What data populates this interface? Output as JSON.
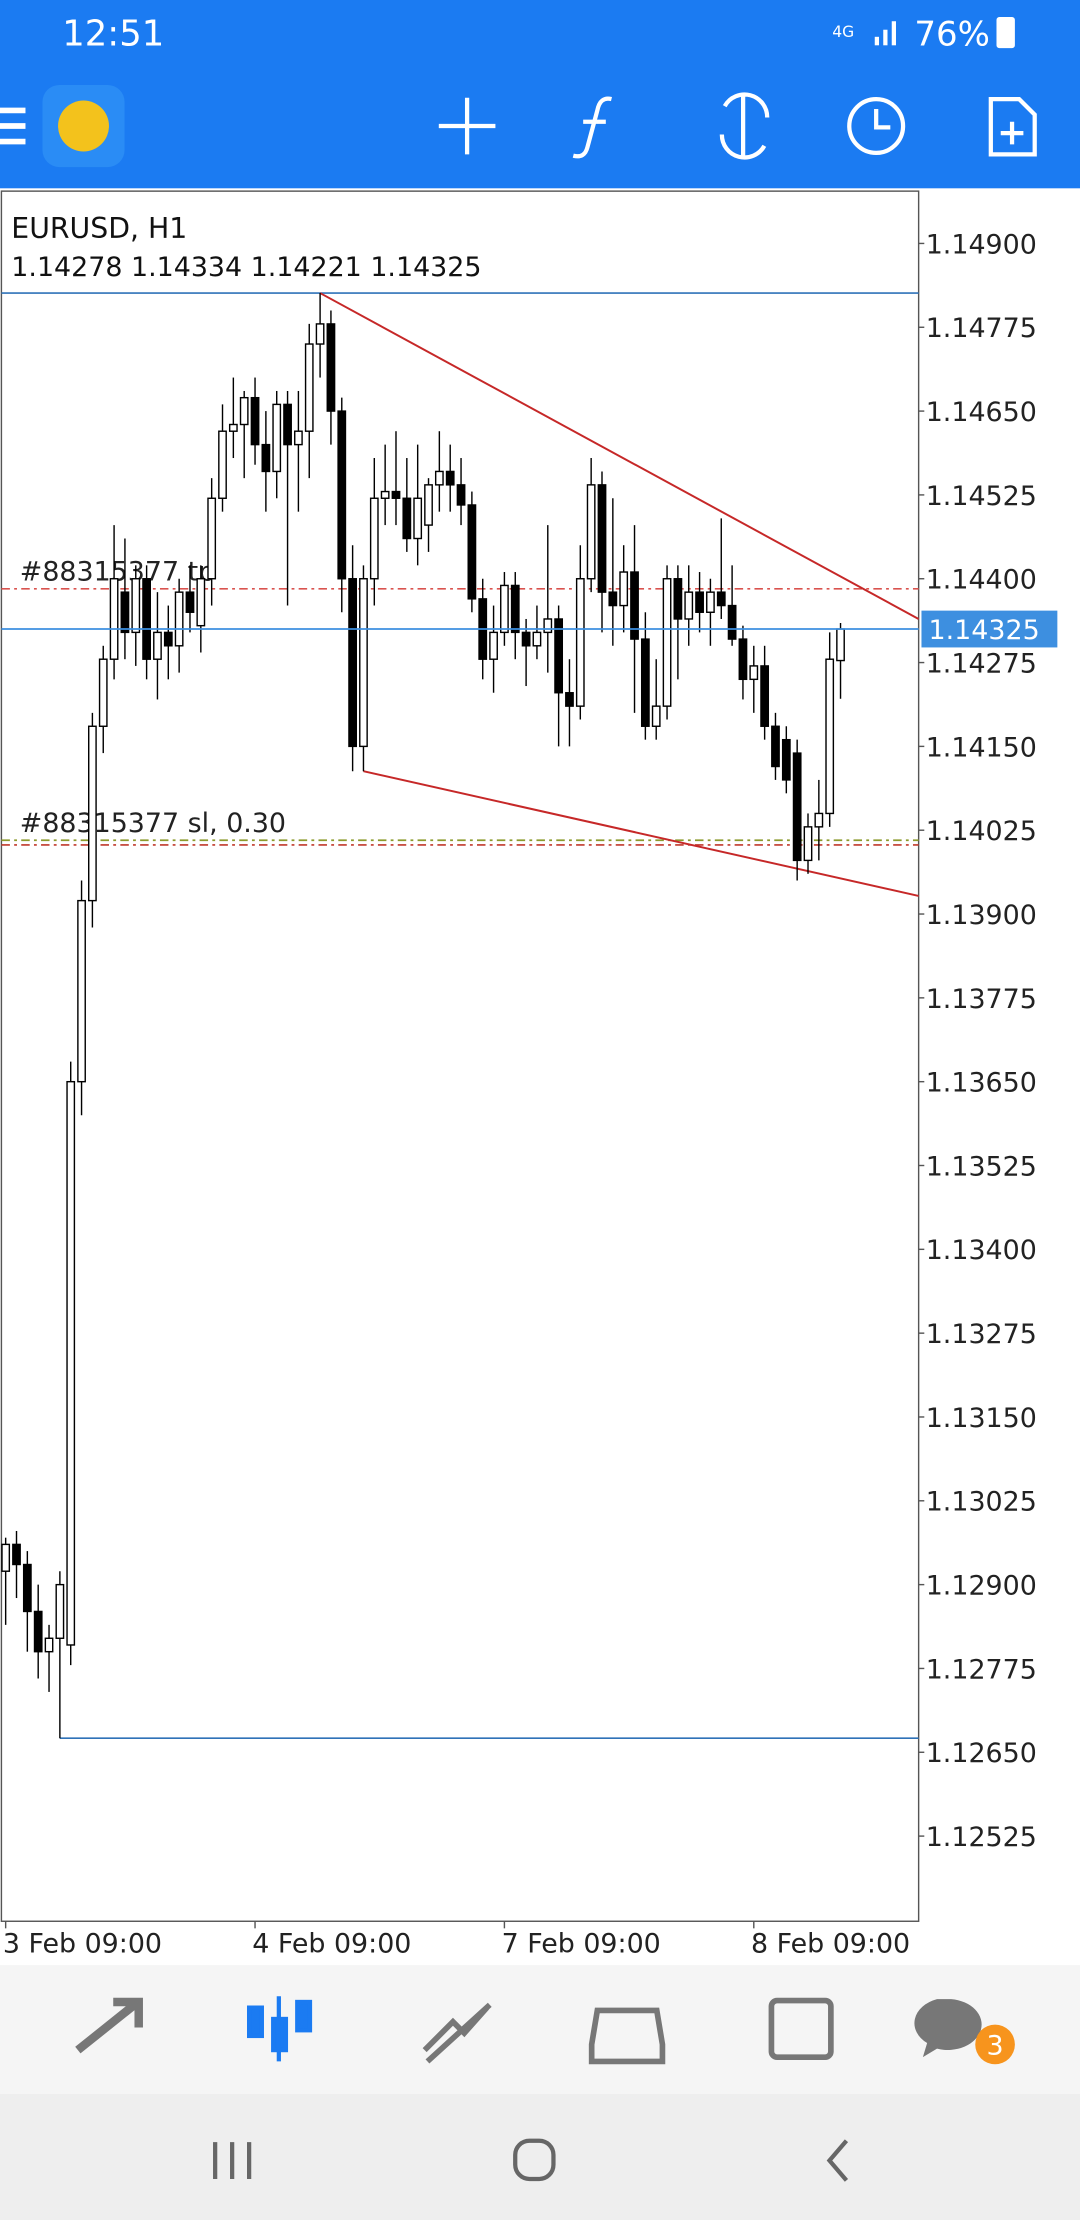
{
  "status_bar": {
    "time": "12:51",
    "network": "4G",
    "battery": "76%"
  },
  "chart_data": {
    "type": "candlestick",
    "symbol": "EURUSD, H1",
    "categories": [
      "3 Feb 09:00",
      null,
      null,
      null,
      null,
      null,
      null,
      null,
      null,
      null,
      null,
      null,
      null,
      null,
      null,
      null,
      null,
      null,
      null,
      null,
      null,
      null,
      null,
      "4 Feb 09:00",
      null,
      null,
      null,
      null,
      null,
      null,
      null,
      null,
      null,
      null,
      null,
      null,
      null,
      null,
      null,
      null,
      null,
      null,
      null,
      null,
      null,
      null,
      "7 Feb 09:00",
      null,
      null,
      null,
      null,
      null,
      null,
      null,
      null,
      null,
      null,
      null,
      null,
      null,
      null,
      null,
      null,
      null,
      null,
      null,
      null,
      null,
      null,
      "8 Feb 09:00",
      null,
      null,
      null,
      null,
      null,
      null,
      null,
      null
    ],
    "open": [
      1.1292,
      1.1296,
      1.1293,
      1.1286,
      1.128,
      1.1282,
      1.1281,
      1.1365,
      1.1392,
      1.1418,
      1.1428,
      1.1438,
      1.1432,
      1.144,
      1.1428,
      1.1432,
      1.143,
      1.1438,
      1.1433,
      1.144,
      1.1452,
      1.1462,
      1.1463,
      1.1467,
      1.146,
      1.1456,
      1.1466,
      1.146,
      1.1462,
      1.1475,
      1.1478,
      1.1465,
      1.144,
      1.1415,
      1.144,
      1.1452,
      1.1453,
      1.1452,
      1.1446,
      1.1448,
      1.1454,
      1.1456,
      1.1454,
      1.1451,
      1.1437,
      1.1428,
      1.1432,
      1.1439,
      1.1432,
      1.143,
      1.1432,
      1.1434,
      1.1423,
      1.1421,
      1.144,
      1.1454,
      1.1438,
      1.1436,
      1.1441,
      1.1431,
      1.1418,
      1.1421,
      1.144,
      1.1434,
      1.1438,
      1.1435,
      1.1438,
      1.1436,
      1.1431,
      1.1425,
      1.1427,
      1.1418,
      1.1416,
      1.1414,
      1.1398,
      1.1403,
      1.1405,
      1.14278
    ],
    "high": [
      1.1297,
      1.1298,
      1.1295,
      1.129,
      1.1284,
      1.1292,
      1.1368,
      1.1395,
      1.142,
      1.143,
      1.1448,
      1.1446,
      1.1442,
      1.1442,
      1.1438,
      1.1436,
      1.144,
      1.1442,
      1.1442,
      1.1455,
      1.1466,
      1.147,
      1.1468,
      1.147,
      1.1465,
      1.1468,
      1.1468,
      1.1468,
      1.1478,
      1.14826,
      1.148,
      1.1467,
      1.1445,
      1.1442,
      1.1458,
      1.146,
      1.1462,
      1.1458,
      1.146,
      1.1455,
      1.1462,
      1.146,
      1.1458,
      1.1453,
      1.144,
      1.1436,
      1.1441,
      1.1441,
      1.1434,
      1.1436,
      1.1448,
      1.1436,
      1.1428,
      1.1445,
      1.1458,
      1.1456,
      1.1452,
      1.1445,
      1.1448,
      1.1435,
      1.1428,
      1.1442,
      1.1442,
      1.1442,
      1.1441,
      1.144,
      1.1449,
      1.1442,
      1.1433,
      1.143,
      1.143,
      1.142,
      1.1418,
      1.1416,
      1.1405,
      1.141,
      1.1432,
      1.14334
    ],
    "low": [
      1.1284,
      1.1288,
      1.128,
      1.1276,
      1.1274,
      1.12671,
      1.1278,
      1.136,
      1.1388,
      1.1414,
      1.1425,
      1.1428,
      1.1427,
      1.1425,
      1.1422,
      1.1425,
      1.1426,
      1.1432,
      1.1429,
      1.1436,
      1.145,
      1.1458,
      1.1455,
      1.1457,
      1.145,
      1.1452,
      1.1436,
      1.145,
      1.1455,
      1.147,
      1.146,
      1.1435,
      1.14113,
      1.14113,
      1.1436,
      1.1448,
      1.1448,
      1.1444,
      1.1442,
      1.1444,
      1.145,
      1.145,
      1.1448,
      1.1435,
      1.1425,
      1.1423,
      1.143,
      1.1428,
      1.1424,
      1.1428,
      1.1426,
      1.1415,
      1.1415,
      1.1419,
      1.1438,
      1.1432,
      1.143,
      1.1432,
      1.142,
      1.1416,
      1.1416,
      1.1419,
      1.1425,
      1.143,
      1.1432,
      1.143,
      1.1434,
      1.143,
      1.1422,
      1.142,
      1.1416,
      1.141,
      1.1408,
      1.1395,
      1.1396,
      1.1398,
      1.1403,
      1.14221
    ],
    "close": [
      1.1296,
      1.1293,
      1.1286,
      1.128,
      1.1282,
      1.129,
      1.1365,
      1.1392,
      1.1418,
      1.1428,
      1.144,
      1.1432,
      1.144,
      1.1428,
      1.1432,
      1.143,
      1.1438,
      1.1435,
      1.144,
      1.1452,
      1.1462,
      1.1463,
      1.1467,
      1.146,
      1.1456,
      1.1466,
      1.146,
      1.1462,
      1.1475,
      1.1478,
      1.1465,
      1.144,
      1.1415,
      1.144,
      1.1452,
      1.1453,
      1.1452,
      1.1446,
      1.1452,
      1.1454,
      1.1456,
      1.1454,
      1.1451,
      1.1437,
      1.1428,
      1.1432,
      1.1439,
      1.1432,
      1.143,
      1.1432,
      1.1434,
      1.1423,
      1.1421,
      1.144,
      1.1454,
      1.1438,
      1.1436,
      1.1441,
      1.1431,
      1.1418,
      1.1421,
      1.144,
      1.1434,
      1.1438,
      1.1435,
      1.1438,
      1.1436,
      1.1431,
      1.1425,
      1.1427,
      1.1418,
      1.1412,
      1.141,
      1.1398,
      1.1403,
      1.1405,
      1.1428,
      1.14325
    ],
    "ylim": [
      1.12398,
      1.14978
    ],
    "yticks": [
      {
        "value": 1.149,
        "label": "1.14900"
      },
      1.14775,
      {
        "value": 1.1465,
        "label": "1.14650"
      },
      1.14525,
      {
        "value": 1.144,
        "label": "1.14400"
      },
      1.14275,
      {
        "value": 1.1415,
        "label": "1.14150"
      },
      1.14025,
      {
        "value": 1.139,
        "label": "1.13900"
      },
      1.13775,
      {
        "value": 1.1365,
        "label": "1.13650"
      },
      1.13525,
      {
        "value": 1.134,
        "label": "1.13400"
      },
      1.13275,
      {
        "value": 1.1315,
        "label": "1.13150"
      },
      1.13025,
      {
        "value": 1.129,
        "label": "1.12900"
      },
      1.12775,
      {
        "value": 1.1265,
        "label": "1.12650"
      },
      1.12525
    ],
    "levels": [
      {
        "label": "#88315377 tp",
        "value": 1.14385,
        "color": "#d9534f"
      },
      {
        "label": "#88315377 sl, 0.30",
        "value": 1.1401,
        "color": "#8c9a2c"
      }
    ],
    "hlines": [
      {
        "value": 1.14826,
        "color": "#2f72b8"
      },
      {
        "value": 1.12671,
        "color": "#2f72b8",
        "from": 5
      },
      {
        "value": 1.14003,
        "color": "#c0392b"
      }
    ],
    "trendlines": [
      {
        "from": [
          29,
          1.14826
        ],
        "to": [
          84.2,
          1.1434
        ],
        "color": "#c62828"
      },
      {
        "from": [
          33,
          1.14113
        ],
        "to": [
          84.2,
          1.13927
        ],
        "color": "#c62828"
      }
    ],
    "price_line_color": "#3d8fe0",
    "bull_color": "#ffffff",
    "bear_color": "#000000"
  },
  "nav": {
    "badge": "3"
  }
}
